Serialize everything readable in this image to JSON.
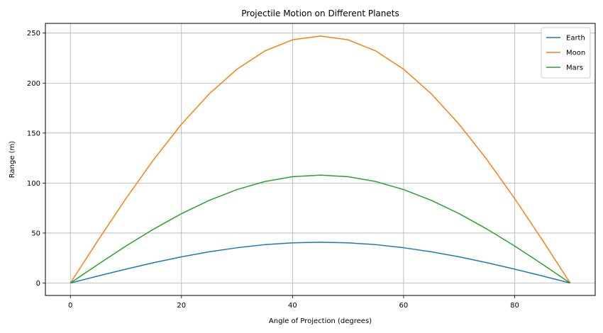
{
  "chart_data": {
    "type": "line",
    "title": "Projectile Motion on Different Planets",
    "xlabel": "Angle of Projection (degrees)",
    "ylabel": "Range (m)",
    "xlim": [
      -4.5,
      94.5
    ],
    "ylim": [
      -12.4,
      259.7
    ],
    "xticks": [
      0,
      20,
      40,
      60,
      80
    ],
    "yticks": [
      0,
      50,
      100,
      150,
      200,
      250
    ],
    "grid": true,
    "legend_position": "top-right",
    "angles": [
      0,
      5,
      10,
      15,
      20,
      25,
      30,
      35,
      40,
      45,
      50,
      55,
      60,
      65,
      70,
      75,
      80,
      85,
      90
    ],
    "series": [
      {
        "name": "Earth",
        "color": "#1f77b4",
        "values": [
          0,
          7.1,
          13.9,
          20.4,
          26.2,
          31.3,
          35.3,
          38.4,
          40.2,
          40.8,
          40.2,
          38.4,
          35.3,
          31.3,
          26.2,
          20.4,
          13.9,
          7.1,
          0
        ]
      },
      {
        "name": "Moon",
        "color": "#ff7f0e",
        "values": [
          0,
          42.9,
          84.5,
          123.5,
          158.8,
          189.2,
          213.9,
          232.1,
          243.3,
          247.0,
          243.3,
          232.1,
          213.9,
          189.2,
          158.8,
          123.5,
          84.5,
          42.9,
          0
        ]
      },
      {
        "name": "Mars",
        "color": "#2ca02c",
        "values": [
          0,
          18.8,
          37.0,
          54.0,
          69.4,
          82.7,
          93.5,
          101.5,
          106.4,
          108.0,
          106.4,
          101.5,
          93.5,
          82.7,
          69.4,
          54.0,
          37.0,
          18.8,
          0
        ]
      }
    ]
  }
}
